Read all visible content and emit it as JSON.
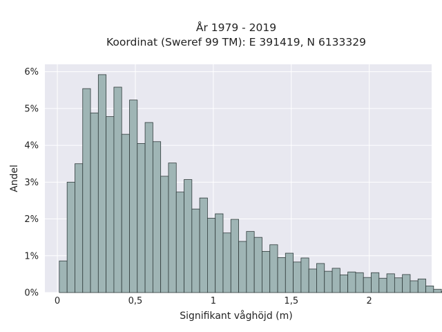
{
  "chart_data": {
    "type": "bar",
    "title": "År 1979 - 2019",
    "subtitle": "Koordinat (Sweref 99 TM): E 391419, N 6133329",
    "xlabel": "Signifikant våghöjd (m)",
    "ylabel": "Andel",
    "xlim": [
      -0.08,
      2.4
    ],
    "ylim": [
      0,
      6.2
    ],
    "x_ticks": [
      {
        "value": 0,
        "label": "0"
      },
      {
        "value": 0.5,
        "label": "0,5"
      },
      {
        "value": 1,
        "label": "1"
      },
      {
        "value": 1.5,
        "label": "1,5"
      },
      {
        "value": 2,
        "label": "2"
      }
    ],
    "y_ticks": [
      {
        "value": 0,
        "label": "0%"
      },
      {
        "value": 1,
        "label": "1%"
      },
      {
        "value": 2,
        "label": "2%"
      },
      {
        "value": 3,
        "label": "3%"
      },
      {
        "value": 4,
        "label": "4%"
      },
      {
        "value": 5,
        "label": "5%"
      },
      {
        "value": 6,
        "label": "6%"
      }
    ],
    "bin_start": 0.0125,
    "bin_width": 0.05,
    "values": [
      0.86,
      3.0,
      3.5,
      5.54,
      4.88,
      5.92,
      4.78,
      5.58,
      4.3,
      5.23,
      4.05,
      4.62,
      4.1,
      3.16,
      3.52,
      2.73,
      3.07,
      2.27,
      2.57,
      2.02,
      2.14,
      1.62,
      1.99,
      1.39,
      1.66,
      1.5,
      1.12,
      1.3,
      0.95,
      1.07,
      0.83,
      0.94,
      0.64,
      0.79,
      0.58,
      0.66,
      0.48,
      0.56,
      0.54,
      0.41,
      0.54,
      0.39,
      0.51,
      0.4,
      0.49,
      0.32,
      0.37,
      0.18,
      0.09,
      0.03
    ],
    "grid": true,
    "colors": {
      "plot_background": "#e8e8f0",
      "grid": "#ffffff",
      "bar_fill": "#9fb5b5",
      "bar_stroke": "#2f3a3a"
    }
  }
}
